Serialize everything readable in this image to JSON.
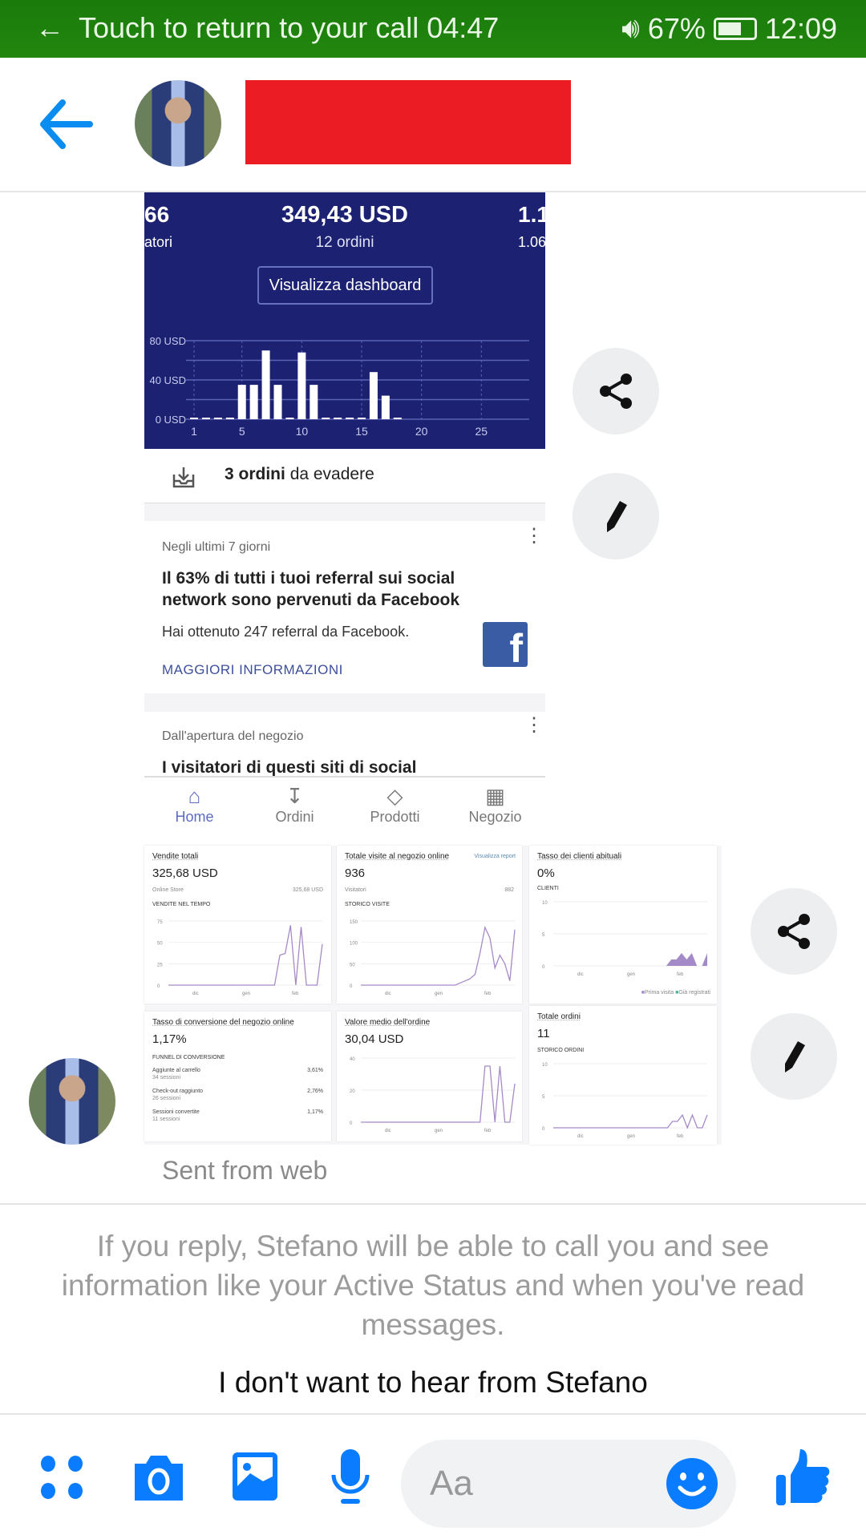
{
  "status_bar": {
    "call_text": "Touch to return to your call",
    "call_time": "04:47",
    "battery": "67%",
    "battery_level": 0.67,
    "time": "12:09"
  },
  "header": {
    "back_icon": "arrow-left-icon",
    "name_redacted": true,
    "accent": "#0084ff"
  },
  "message1": {
    "left_value": "66",
    "left_label": "atori",
    "center_value": "349,43 USD",
    "center_label": "12 ordini",
    "right_value": "1.1",
    "right_label": "1.06",
    "dashboard_button": "Visualizza dashboard",
    "orders_count": "3 ordini",
    "orders_suffix": "da evadere",
    "card1": {
      "kicker": "Negli ultimi 7 giorni",
      "title": "Il 63% di tutti i tuoi referral sui social network sono pervenuti da Facebook",
      "body": "Hai ottenuto 247 referral da Facebook.",
      "link": "MAGGIORI INFORMAZIONI"
    },
    "card2": {
      "kicker": "Dall'apertura del negozio",
      "title": "I visitatori di questi siti di social"
    },
    "nav": [
      "Home",
      "Ordini",
      "Prodotti",
      "Negozio"
    ]
  },
  "message2": {
    "cards": [
      {
        "title": "Vendite totali",
        "value": "325,68 USD",
        "row_label": "Online Store",
        "row_value": "325,68 USD",
        "section": "VENDITE NEL TEMPO"
      },
      {
        "title": "Totale visite al negozio online",
        "link": "Visualizza report",
        "value": "936",
        "row_label": "Visitatori",
        "row_value": "882",
        "section": "STORICO VISITE"
      },
      {
        "title": "Tasso dei clienti abituali",
        "value": "0%",
        "section": "CLIENTI",
        "legend": [
          "Prima visita",
          "Già registrati"
        ]
      },
      {
        "title": "Tasso di conversione del negozio online",
        "value": "1,17%",
        "section": "FUNNEL DI CONVERSIONE",
        "funnel": [
          {
            "label": "Aggiunte al carrello",
            "sub": "34 sessioni",
            "pct": "3,61%"
          },
          {
            "label": "Check-out raggiunto",
            "sub": "26 sessioni",
            "pct": "2,76%"
          },
          {
            "label": "Sessioni convertite",
            "sub": "11 sessioni",
            "pct": "1,17%"
          }
        ]
      },
      {
        "title": "Valore medio dell'ordine",
        "value": "30,04 USD"
      },
      {
        "title": "Totale ordini",
        "value": "11",
        "section": "STORICO ORDINI"
      }
    ]
  },
  "sent_from": "Sent from web",
  "notice": "If you reply, Stefano will be able to call you and see information like your Active Status and when you've read messages.",
  "block_link": "I don't want to hear from Stefano",
  "composer": {
    "placeholder": "Aa"
  },
  "chart_data": [
    {
      "type": "bar",
      "title": "",
      "x": [
        1,
        2,
        3,
        4,
        5,
        6,
        7,
        8,
        9,
        10,
        11,
        12,
        13,
        14,
        15,
        16,
        17,
        18
      ],
      "values": [
        0,
        0,
        0,
        0,
        35,
        35,
        70,
        35,
        0,
        68,
        35,
        0,
        0,
        0,
        0,
        48,
        24,
        0
      ],
      "xticks": [
        "1",
        "5",
        "10",
        "15",
        "20",
        "25"
      ],
      "yticks": [
        "0 USD",
        "40 USD",
        "80 USD"
      ],
      "ylim": [
        0,
        80
      ],
      "xlim": [
        1,
        29
      ],
      "grid": true
    },
    {
      "type": "line",
      "title": "VENDITE NEL TEMPO",
      "xticks": [
        "dic",
        "gen",
        "feb"
      ],
      "yticks": [
        "0",
        "25",
        "50",
        "75"
      ],
      "ylim": [
        0,
        75
      ],
      "values": [
        0,
        0,
        0,
        0,
        0,
        0,
        0,
        0,
        0,
        0,
        0,
        0,
        0,
        0,
        0,
        0,
        0,
        0,
        0,
        0,
        0,
        35,
        37,
        70,
        0,
        68,
        0,
        0,
        0,
        48
      ],
      "color": "#a58ac8"
    },
    {
      "type": "line",
      "title": "STORICO VISITE",
      "xticks": [
        "dic",
        "gen",
        "feb"
      ],
      "yticks": [
        "0",
        "50",
        "100",
        "150"
      ],
      "ylim": [
        0,
        150
      ],
      "values": [
        0,
        0,
        0,
        0,
        0,
        0,
        0,
        0,
        0,
        0,
        0,
        0,
        0,
        0,
        0,
        0,
        0,
        0,
        0,
        0,
        5,
        10,
        15,
        25,
        75,
        135,
        110,
        40,
        70,
        50,
        10,
        130
      ],
      "color": "#a58ac8"
    },
    {
      "type": "area",
      "title": "CLIENTI",
      "xticks": [
        "dic",
        "gen",
        "feb"
      ],
      "yticks": [
        "0",
        "5",
        "10"
      ],
      "ylim": [
        0,
        10
      ],
      "values": [
        0,
        0,
        0,
        0,
        0,
        0,
        0,
        0,
        0,
        0,
        0,
        0,
        0,
        0,
        0,
        0,
        0,
        0,
        0,
        0,
        0,
        0,
        0,
        1,
        1,
        2,
        1,
        2,
        0,
        0,
        2
      ],
      "color": "#a58ac8"
    },
    {
      "type": "line",
      "title": "",
      "xticks": [
        "dic",
        "gen",
        "feb"
      ],
      "yticks": [
        "0",
        "20",
        "40"
      ],
      "ylim": [
        0,
        40
      ],
      "values": [
        0,
        0,
        0,
        0,
        0,
        0,
        0,
        0,
        0,
        0,
        0,
        0,
        0,
        0,
        0,
        0,
        0,
        0,
        0,
        0,
        0,
        0,
        0,
        0,
        0,
        35,
        35,
        0,
        35,
        0,
        0,
        24
      ],
      "color": "#a58ac8"
    },
    {
      "type": "line",
      "title": "STORICO ORDINI",
      "xticks": [
        "dic",
        "gen",
        "feb"
      ],
      "yticks": [
        "0",
        "5",
        "10"
      ],
      "ylim": [
        0,
        10
      ],
      "values": [
        0,
        0,
        0,
        0,
        0,
        0,
        0,
        0,
        0,
        0,
        0,
        0,
        0,
        0,
        0,
        0,
        0,
        0,
        0,
        0,
        0,
        0,
        0,
        0,
        1,
        1,
        2,
        0,
        2,
        0,
        0,
        2
      ],
      "color": "#a58ac8"
    }
  ]
}
